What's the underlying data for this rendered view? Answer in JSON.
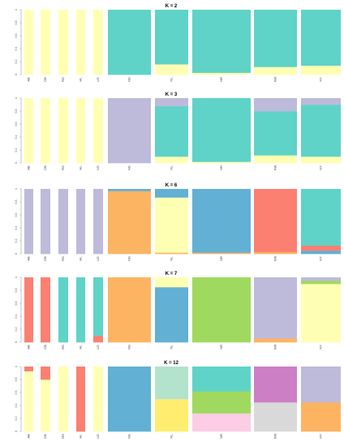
{
  "chart_data": [
    {
      "type": "bar",
      "title": "K = 2",
      "ylim": [
        0,
        1
      ],
      "yticks": [
        "0",
        "0.2",
        "0.4",
        "0.6",
        "0.8",
        "1"
      ],
      "colors": [
        "#ffffb3",
        "#5fd3c7"
      ],
      "populations": [
        {
          "label": "AB",
          "proportions": [
            1.0,
            0.0
          ]
        },
        {
          "label": "CB",
          "proportions": [
            1.0,
            0.0
          ]
        },
        {
          "label": "RS",
          "proportions": [
            1.0,
            0.0
          ]
        },
        {
          "label": "HL",
          "proportions": [
            1.0,
            0.0
          ]
        },
        {
          "label": "LO",
          "proportions": [
            1.0,
            0.0
          ]
        },
        {
          "label": "NG",
          "proportions": [
            0.0,
            1.0
          ]
        },
        {
          "label": "NL",
          "proportions": [
            0.16,
            0.84
          ]
        },
        {
          "label": "NR",
          "proportions": [
            0.03,
            0.97
          ]
        },
        {
          "label": "NW",
          "proportions": [
            0.12,
            0.88
          ]
        },
        {
          "label": "NY",
          "proportions": [
            0.14,
            0.86
          ]
        }
      ]
    },
    {
      "type": "bar",
      "title": "K = 3",
      "ylim": [
        0,
        1
      ],
      "yticks": [
        "0",
        "0.2",
        "0.4",
        "0.6",
        "0.8",
        "1"
      ],
      "colors": [
        "#ffffb3",
        "#5fd3c7",
        "#bebada"
      ],
      "populations": [
        {
          "label": "AB",
          "proportions": [
            1.0,
            0.0,
            0.0
          ]
        },
        {
          "label": "CB",
          "proportions": [
            1.0,
            0.0,
            0.0
          ]
        },
        {
          "label": "RS",
          "proportions": [
            1.0,
            0.0,
            0.0
          ]
        },
        {
          "label": "HL",
          "proportions": [
            1.0,
            0.0,
            0.0
          ]
        },
        {
          "label": "LO",
          "proportions": [
            1.0,
            0.0,
            0.0
          ]
        },
        {
          "label": "NG",
          "proportions": [
            0.0,
            0.0,
            1.0
          ]
        },
        {
          "label": "NL",
          "proportions": [
            0.1,
            0.78,
            0.12
          ]
        },
        {
          "label": "NR",
          "proportions": [
            0.02,
            0.98,
            0.0
          ]
        },
        {
          "label": "NW",
          "proportions": [
            0.12,
            0.68,
            0.2
          ]
        },
        {
          "label": "NY",
          "proportions": [
            0.1,
            0.8,
            0.1
          ]
        }
      ]
    },
    {
      "type": "bar",
      "title": "K = 6",
      "ylim": [
        0,
        1
      ],
      "yticks": [
        "0",
        "0.2",
        "0.4",
        "0.6",
        "0.8",
        "1"
      ],
      "colors": [
        "#bebada",
        "#fdb462",
        "#ffffb3",
        "#62b0d4",
        "#fb8072",
        "#5fd3c7"
      ],
      "populations": [
        {
          "label": "AB",
          "proportions": [
            1.0,
            0.0,
            0.0,
            0.0,
            0.0,
            0.0
          ]
        },
        {
          "label": "CB",
          "proportions": [
            1.0,
            0.0,
            0.0,
            0.0,
            0.0,
            0.0
          ]
        },
        {
          "label": "RS",
          "proportions": [
            1.0,
            0.0,
            0.0,
            0.0,
            0.0,
            0.0
          ]
        },
        {
          "label": "HL",
          "proportions": [
            1.0,
            0.0,
            0.0,
            0.0,
            0.0,
            0.0
          ]
        },
        {
          "label": "LO",
          "proportions": [
            1.0,
            0.0,
            0.0,
            0.0,
            0.0,
            0.0
          ]
        },
        {
          "label": "NG",
          "proportions": [
            0.0,
            0.97,
            0.0,
            0.03,
            0.0,
            0.0
          ]
        },
        {
          "label": "NL",
          "proportions": [
            0.0,
            0.02,
            0.85,
            0.13,
            0.0,
            0.0
          ]
        },
        {
          "label": "NR",
          "proportions": [
            0.0,
            0.02,
            0.0,
            0.98,
            0.0,
            0.0
          ]
        },
        {
          "label": "NW",
          "proportions": [
            0.0,
            0.03,
            0.0,
            0.0,
            0.97,
            0.0
          ]
        },
        {
          "label": "NY",
          "proportions": [
            0.0,
            0.0,
            0.0,
            0.05,
            0.08,
            0.87
          ]
        }
      ]
    },
    {
      "type": "bar",
      "title": "K = 7",
      "ylim": [
        0,
        1
      ],
      "yticks": [
        "0",
        "0.2",
        "0.4",
        "0.6",
        "0.8",
        "1"
      ],
      "colors": [
        "#fb8072",
        "#5fd3c7",
        "#fdb462",
        "#62b0d4",
        "#ffffb3",
        "#a0d95f",
        "#bebada"
      ],
      "populations": [
        {
          "label": "AB",
          "proportions": [
            1.0,
            0.0,
            0.0,
            0.0,
            0.0,
            0.0,
            0.0
          ]
        },
        {
          "label": "CB",
          "proportions": [
            1.0,
            0.0,
            0.0,
            0.0,
            0.0,
            0.0,
            0.0
          ]
        },
        {
          "label": "RS",
          "proportions": [
            0.0,
            1.0,
            0.0,
            0.0,
            0.0,
            0.0,
            0.0
          ]
        },
        {
          "label": "HL",
          "proportions": [
            0.0,
            1.0,
            0.0,
            0.0,
            0.0,
            0.0,
            0.0
          ]
        },
        {
          "label": "LO",
          "proportions": [
            0.1,
            0.9,
            0.0,
            0.0,
            0.0,
            0.0,
            0.0
          ]
        },
        {
          "label": "NG",
          "proportions": [
            0.0,
            0.0,
            1.0,
            0.0,
            0.0,
            0.0,
            0.0
          ]
        },
        {
          "label": "NL",
          "proportions": [
            0.0,
            0.0,
            0.0,
            0.85,
            0.15,
            0.0,
            0.0
          ]
        },
        {
          "label": "NR",
          "proportions": [
            0.0,
            0.0,
            0.0,
            0.0,
            0.0,
            1.0,
            0.0
          ]
        },
        {
          "label": "NW",
          "proportions": [
            0.0,
            0.0,
            0.06,
            0.0,
            0.0,
            0.0,
            0.94
          ]
        },
        {
          "label": "NY",
          "proportions": [
            0.0,
            0.0,
            0.0,
            0.0,
            0.9,
            0.05,
            0.05
          ]
        }
      ]
    },
    {
      "type": "bar",
      "title": "K = 12",
      "ylim": [
        0,
        1
      ],
      "yticks": [
        "0",
        "0.2",
        "0.4",
        "0.6",
        "0.8",
        "1"
      ],
      "colors": [
        "#ffffb3",
        "#fb8072",
        "#62b0d4",
        "#ffed6f",
        "#b3e2cd",
        "#fccde5",
        "#a0d95f",
        "#5fd3c7",
        "#d9d9d9",
        "#cc7fc4",
        "#fdb462",
        "#bebada"
      ],
      "populations": [
        {
          "label": "AB",
          "proportions": [
            0.93,
            0.07,
            0.0,
            0.0,
            0.0,
            0.0,
            0.0,
            0.0,
            0.0,
            0.0,
            0.0,
            0.0
          ]
        },
        {
          "label": "CB",
          "proportions": [
            0.8,
            0.2,
            0.0,
            0.0,
            0.0,
            0.0,
            0.0,
            0.0,
            0.0,
            0.0,
            0.0,
            0.0
          ]
        },
        {
          "label": "RS",
          "proportions": [
            1.0,
            0.0,
            0.0,
            0.0,
            0.0,
            0.0,
            0.0,
            0.0,
            0.0,
            0.0,
            0.0,
            0.0
          ]
        },
        {
          "label": "HL",
          "proportions": [
            0.0,
            1.0,
            0.0,
            0.0,
            0.0,
            0.0,
            0.0,
            0.0,
            0.0,
            0.0,
            0.0,
            0.0
          ]
        },
        {
          "label": "LO",
          "proportions": [
            1.0,
            0.0,
            0.0,
            0.0,
            0.0,
            0.0,
            0.0,
            0.0,
            0.0,
            0.0,
            0.0,
            0.0
          ]
        },
        {
          "label": "NG",
          "proportions": [
            0.0,
            0.0,
            1.0,
            0.0,
            0.0,
            0.0,
            0.0,
            0.0,
            0.0,
            0.0,
            0.0,
            0.0
          ]
        },
        {
          "label": "NL",
          "proportions": [
            0.0,
            0.0,
            0.0,
            0.5,
            0.5,
            0.0,
            0.0,
            0.0,
            0.0,
            0.0,
            0.0,
            0.0
          ]
        },
        {
          "label": "NR",
          "proportions": [
            0.0,
            0.0,
            0.0,
            0.0,
            0.0,
            0.28,
            0.34,
            0.38,
            0.0,
            0.0,
            0.0,
            0.0
          ]
        },
        {
          "label": "NW",
          "proportions": [
            0.0,
            0.0,
            0.0,
            0.0,
            0.0,
            0.0,
            0.0,
            0.0,
            0.45,
            0.55,
            0.0,
            0.0
          ]
        },
        {
          "label": "NY",
          "proportions": [
            0.0,
            0.0,
            0.0,
            0.0,
            0.0,
            0.0,
            0.0,
            0.0,
            0.0,
            0.0,
            0.45,
            0.55
          ]
        }
      ]
    }
  ]
}
